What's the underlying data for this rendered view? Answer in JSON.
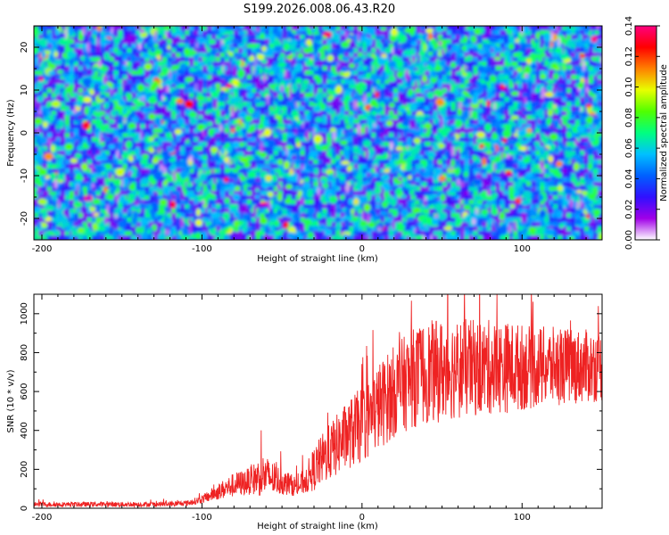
{
  "title": "S199.2026.008.06.43.R20",
  "chart_data": [
    {
      "type": "heatmap",
      "xlabel": "Height of straight line (km)",
      "ylabel": "Frequency (Hz)",
      "xlim": [
        -205,
        150
      ],
      "ylim": [
        -25,
        25
      ],
      "xticks": [
        -200,
        -100,
        0,
        100
      ],
      "yticks": [
        -20,
        -10,
        0,
        10,
        20
      ],
      "colorbar": {
        "label": "Normalized spectral amplitude",
        "range": [
          0,
          0.14
        ],
        "ticks": [
          "0.00",
          "0.02",
          "0.04",
          "0.06",
          "0.08",
          "0.10",
          "0.12",
          "0.14"
        ],
        "colors": [
          "#ffffff",
          "#a000e8",
          "#3010ff",
          "#0060ff",
          "#00c0ff",
          "#00ff80",
          "#50ff00",
          "#e8ff00",
          "#ff8000",
          "#ff0000",
          "#ff0080"
        ]
      },
      "background_color": "#5a10d8"
    },
    {
      "type": "line",
      "xlabel": "Height of straight line (km)",
      "ylabel": "SNR (10 * v/v)",
      "xlim": [
        -205,
        150
      ],
      "ylim": [
        0,
        1100
      ],
      "xticks": [
        -200,
        -100,
        0,
        100
      ],
      "yticks": [
        0,
        200,
        400,
        600,
        800,
        1000
      ],
      "color": "#ee2222",
      "series": [
        {
          "name": "SNR",
          "x": [
            -205,
            -190,
            -175,
            -160,
            -145,
            -130,
            -120,
            -110,
            -100,
            -90,
            -80,
            -70,
            -62,
            -55,
            -48,
            -40,
            -35,
            -30,
            -25,
            -20,
            -15,
            -10,
            -5,
            0,
            5,
            10,
            15,
            20,
            25,
            30,
            35,
            40,
            45,
            50,
            60,
            70,
            80,
            90,
            100,
            110,
            120,
            130,
            140,
            150
          ],
          "mean": [
            20,
            20,
            20,
            20,
            20,
            20,
            22,
            25,
            45,
            85,
            120,
            140,
            170,
            150,
            130,
            110,
            150,
            200,
            250,
            290,
            330,
            370,
            400,
            430,
            470,
            520,
            560,
            600,
            630,
            660,
            680,
            700,
            700,
            710,
            720,
            720,
            725,
            725,
            725,
            725,
            730,
            730,
            730,
            730
          ],
          "spread": [
            18,
            18,
            18,
            18,
            18,
            18,
            20,
            20,
            30,
            60,
            90,
            100,
            160,
            120,
            90,
            70,
            110,
            160,
            190,
            210,
            230,
            250,
            270,
            280,
            300,
            320,
            330,
            340,
            350,
            360,
            370,
            380,
            380,
            380,
            370,
            360,
            350,
            340,
            320,
            300,
            290,
            280,
            270,
            260
          ]
        }
      ]
    }
  ]
}
